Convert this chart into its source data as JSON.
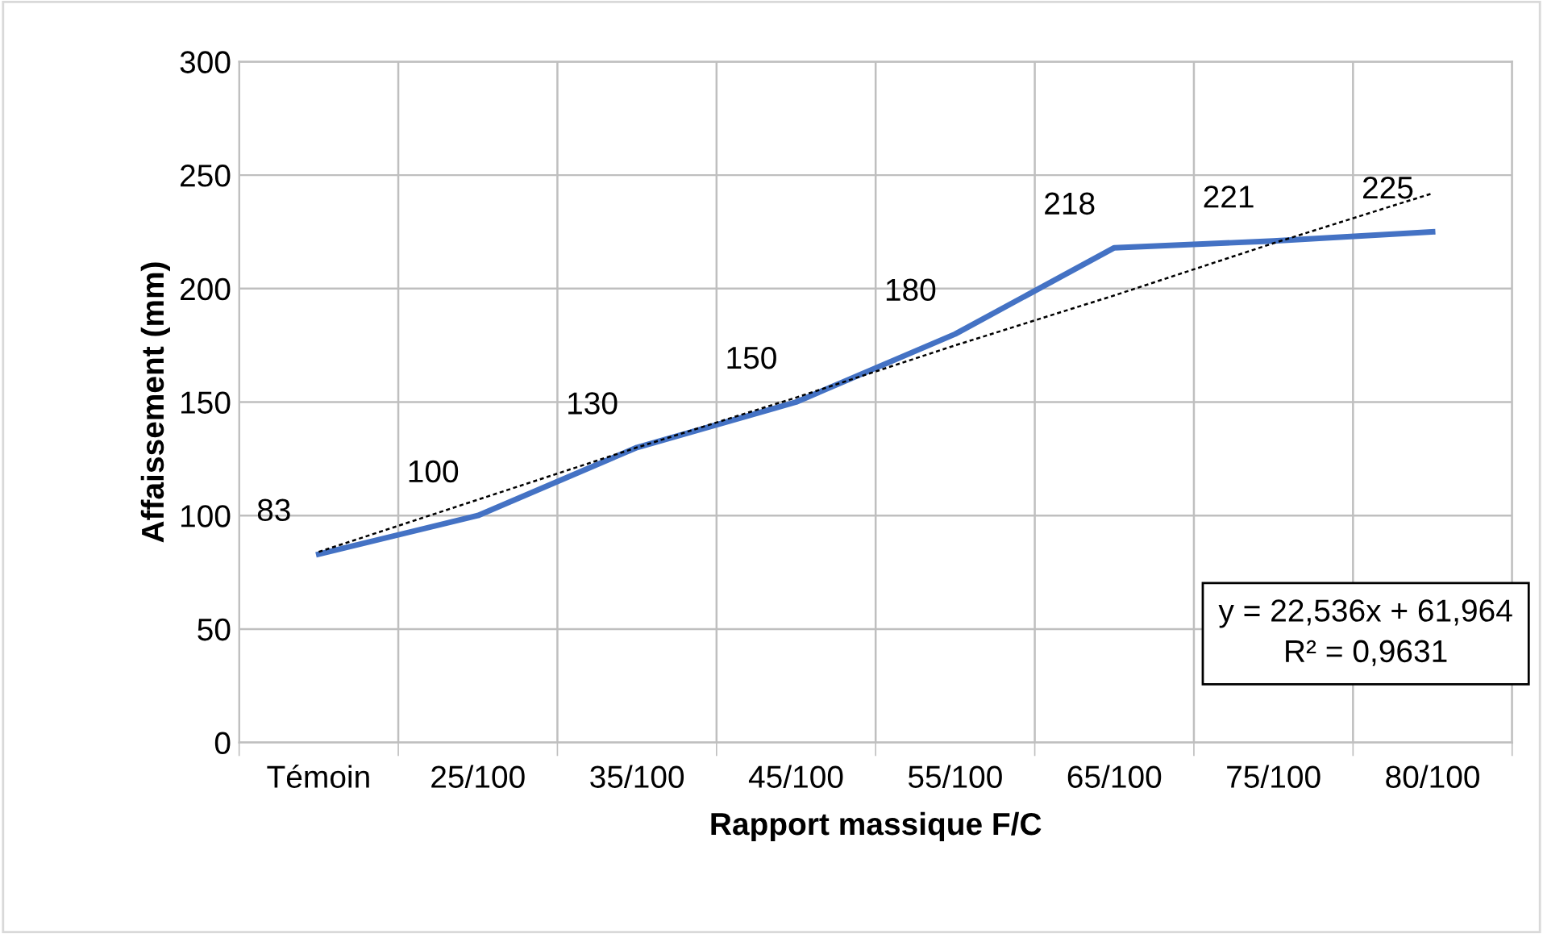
{
  "chart_data": {
    "type": "line",
    "xlabel": "Rapport massique F/C",
    "ylabel": "Affaissement (mm)",
    "categories": [
      "Témoin",
      "25/100",
      "35/100",
      "45/100",
      "55/100",
      "65/100",
      "75/100",
      "80/100"
    ],
    "series": [
      {
        "color": "#4472c4",
        "values": [
          83,
          100,
          130,
          150,
          180,
          218,
          221,
          225
        ],
        "line_style": "solid",
        "data_labels": true
      },
      {
        "type": "line",
        "color": "#000000",
        "values": [
          84,
          107,
          130,
          152,
          175,
          197,
          220,
          242
        ],
        "line_style": "dotted"
      }
    ],
    "ylim": [
      0,
      300
    ],
    "yticks": [
      0,
      50,
      100,
      150,
      200,
      250,
      300
    ],
    "grid": true,
    "marker": "none",
    "annotations": [
      "y = 22,536x + 61,964\nR² = 0,9631"
    ]
  }
}
